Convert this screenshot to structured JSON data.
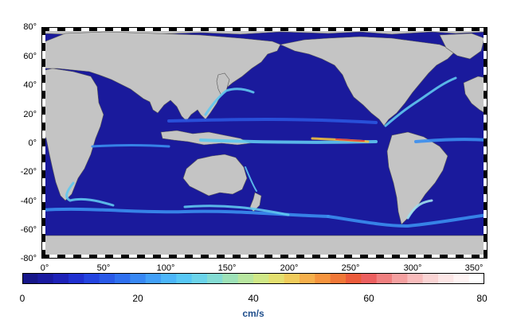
{
  "map": {
    "ocean_color": "#1a1a9c",
    "land_color": "#c4c4c4",
    "current_colors": [
      "#2a55e0",
      "#3a8ef0",
      "#60c8f0",
      "#a0e0f0",
      "#f0c040",
      "#e04040"
    ],
    "lat_labels": [
      "80°",
      "60°",
      "40°",
      "20°",
      "0°",
      "-20°",
      "-40°",
      "-60°",
      "-80°"
    ],
    "lon_labels": [
      "0°",
      "50°",
      "100°",
      "150°",
      "200°",
      "250°",
      "300°",
      "350°"
    ]
  },
  "colorbar": {
    "colors": [
      "#16168a",
      "#1a1aa0",
      "#1e22b8",
      "#2030d0",
      "#2444e0",
      "#2a5ae8",
      "#2f70f0",
      "#3888f4",
      "#42a0f8",
      "#4cb6fa",
      "#58c8f6",
      "#6cd4ea",
      "#84dcd4",
      "#9ee2b8",
      "#b8e6a0",
      "#d0e888",
      "#e4e070",
      "#f0cc5c",
      "#f6b04c",
      "#f6943e",
      "#f07838",
      "#ec5c3c",
      "#ec6060",
      "#f08080",
      "#f4a0a0",
      "#f8bcbc",
      "#fad4d4",
      "#fce6e6",
      "#fef4f4",
      "#ffffff"
    ],
    "tick_labels": [
      "0",
      "20",
      "40",
      "60",
      "80"
    ],
    "units": "cm/s"
  }
}
